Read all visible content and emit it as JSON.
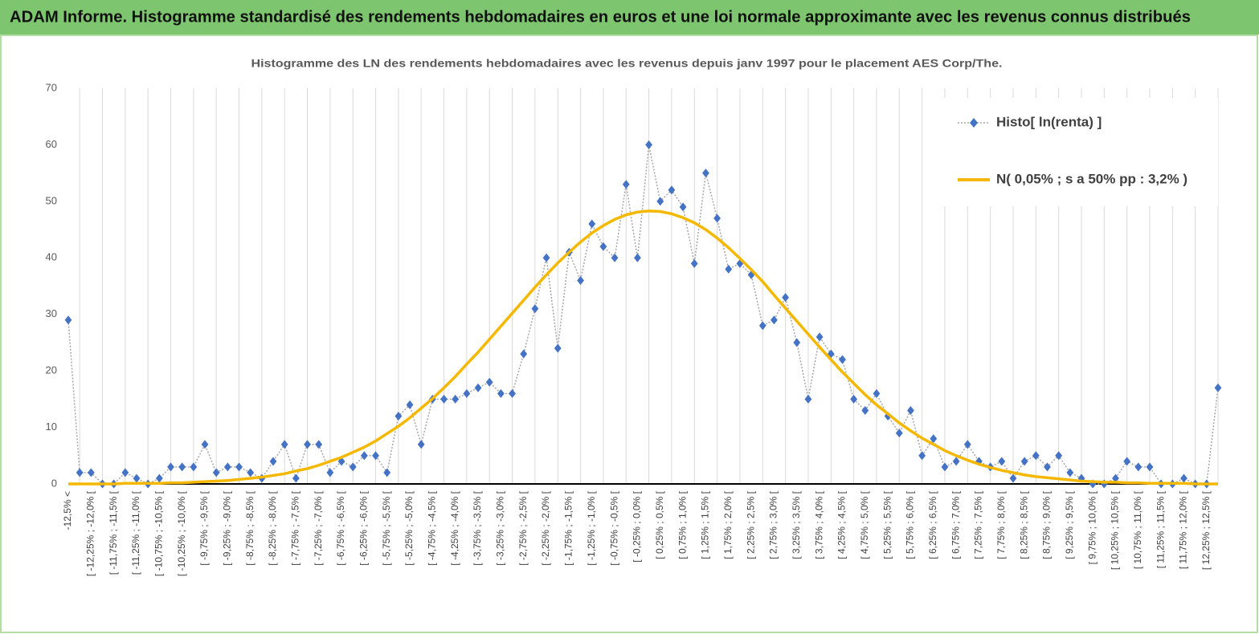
{
  "header": {
    "title": "ADAM Informe. Histogramme standardisé des rendements hebdomadaires en euros et une loi normale approximante avec les revenus connus distribués"
  },
  "chart_data": {
    "type": "line",
    "title": "Histogramme des LN des rendements hebdomadaires avec les revenus depuis janv 1997 pour le placement AES Corp/The.",
    "categories": [
      "-12,5% <",
      null,
      "[ -12,25% ; -12,0% [",
      null,
      "[ -11,75% ; -11,5% [",
      null,
      "[ -11,25% ; -11,0% [",
      null,
      "[ -10,75% ; -10,5% [",
      null,
      "[ -10,25% ; -10,0% [",
      null,
      "[ -9,75% ; -9,5% [",
      null,
      "[ -9,25% ; -9,0% [",
      null,
      "[ -8,75% ; -8,5% [",
      null,
      "[ -8,25% ; -8,0% [",
      null,
      "[ -7,75% ; -7,5% [",
      null,
      "[ -7,25% ; -7,0% [",
      null,
      "[ -6,75% ; -6,5% [",
      null,
      "[ -6,25% ; -6,0% [",
      null,
      "[ -5,75% ; -5,5% [",
      null,
      "[ -5,25% ; -5,0% [",
      null,
      "[ -4,75% ; -4,5% [",
      null,
      "[ -4,25% ; -4,0% [",
      null,
      "[ -3,75% ; -3,5% [",
      null,
      "[ -3,25% ; -3,0% [",
      null,
      "[ -2,75% ; -2,5% [",
      null,
      "[ -2,25% ; -2,0% [",
      null,
      "[ -1,75% ; -1,5% [",
      null,
      "[ -1,25% ; -1,0% [",
      null,
      "[ -0,75% ; -0,5% [",
      null,
      "[ -0,25% ; 0,0% [",
      null,
      "[ 0,25% ; 0,5% [",
      null,
      "[ 0,75% ; 1,0% [",
      null,
      "[ 1,25% ; 1,5% [",
      null,
      "[ 1,75% ; 2,0% [",
      null,
      "[ 2,25% ; 2,5% [",
      null,
      "[ 2,75% ; 3,0% [",
      null,
      "[ 3,25% ; 3,5% [",
      null,
      "[ 3,75% ; 4,0% [",
      null,
      "[ 4,25% ; 4,5% [",
      null,
      "[ 4,75% ; 5,0% [",
      null,
      "[ 5,25% ; 5,5% [",
      null,
      "[ 5,75% ; 6,0% [",
      null,
      "[ 6,25% ; 6,5% [",
      null,
      "[ 6,75% ; 7,0% [",
      null,
      "[ 7,25% ; 7,5% [",
      null,
      "[ 7,75% ; 8,0% [",
      null,
      "[ 8,25% ; 8,5% [",
      null,
      "[ 8,75% ; 9,0% [",
      null,
      "[ 9,25% ; 9,5% [",
      null,
      "[ 9,75% ; 10,0% [",
      null,
      "[ 10,25% ; 10,5% [",
      null,
      "[ 10,75% ; 11,0% [",
      null,
      "[ 11,25% ; 11,5% [",
      null,
      "[ 11,75% ; 12,0% [",
      null,
      "[ 12,25% ; 12,5% [",
      null
    ],
    "series": [
      {
        "name": "Histo[ ln(renta) ]",
        "color": "#4472c4",
        "line_color": "#a6a6a6",
        "style": "dotted-diamonds",
        "values": [
          29,
          2,
          2,
          0,
          0,
          2,
          1,
          0,
          1,
          3,
          3,
          3,
          7,
          2,
          3,
          3,
          2,
          1,
          4,
          7,
          1,
          7,
          7,
          2,
          4,
          3,
          5,
          5,
          2,
          12,
          14,
          7,
          15,
          15,
          15,
          16,
          17,
          18,
          16,
          16,
          23,
          31,
          40,
          24,
          41,
          36,
          46,
          42,
          40,
          53,
          40,
          60,
          50,
          52,
          49,
          39,
          55,
          47,
          38,
          39,
          37,
          28,
          29,
          33,
          25,
          15,
          26,
          23,
          22,
          15,
          13,
          16,
          12,
          9,
          13,
          5,
          8,
          3,
          4,
          7,
          4,
          3,
          4,
          1,
          4,
          5,
          3,
          5,
          2,
          1,
          0,
          0,
          1,
          4,
          3,
          3,
          0,
          0,
          1,
          0,
          0,
          17
        ]
      },
      {
        "name": "N( 0,05% ; s a 50% pp : 3,2% )",
        "color": "#f5b800",
        "style": "solid",
        "values": [
          0,
          0,
          0,
          0,
          0,
          0.1,
          0.1,
          0.1,
          0.1,
          0.2,
          0.2,
          0.3,
          0.4,
          0.5,
          0.6,
          0.8,
          1.0,
          1.2,
          1.5,
          1.8,
          2.3,
          2.7,
          3.3,
          4.0,
          4.7,
          5.6,
          6.5,
          7.6,
          8.9,
          10.2,
          11.7,
          13.4,
          15.1,
          17.0,
          19.0,
          21.2,
          23.3,
          25.6,
          27.9,
          30.2,
          32.5,
          34.8,
          37.0,
          39.1,
          41.0,
          42.8,
          44.4,
          45.7,
          46.8,
          47.6,
          48.1,
          48.3,
          48.2,
          47.8,
          47.1,
          46.2,
          45.0,
          43.5,
          41.8,
          39.9,
          37.9,
          35.8,
          33.4,
          31.1,
          28.8,
          26.5,
          24.2,
          22.0,
          19.8,
          17.8,
          15.8,
          14.0,
          12.4,
          10.8,
          9.4,
          8.1,
          7.0,
          5.9,
          5.0,
          4.2,
          3.5,
          2.9,
          2.4,
          2.0,
          1.6,
          1.3,
          1.1,
          0.9,
          0.7,
          0.5,
          0.4,
          0.3,
          0.3,
          0.2,
          0.2,
          0.1,
          0.1,
          0.1,
          0.1,
          0,
          0,
          0
        ]
      }
    ],
    "ylim": [
      0,
      70
    ],
    "yticks": [
      0,
      10,
      20,
      30,
      40,
      50,
      60,
      70
    ],
    "grid": "vertical",
    "legend": "upper right"
  }
}
